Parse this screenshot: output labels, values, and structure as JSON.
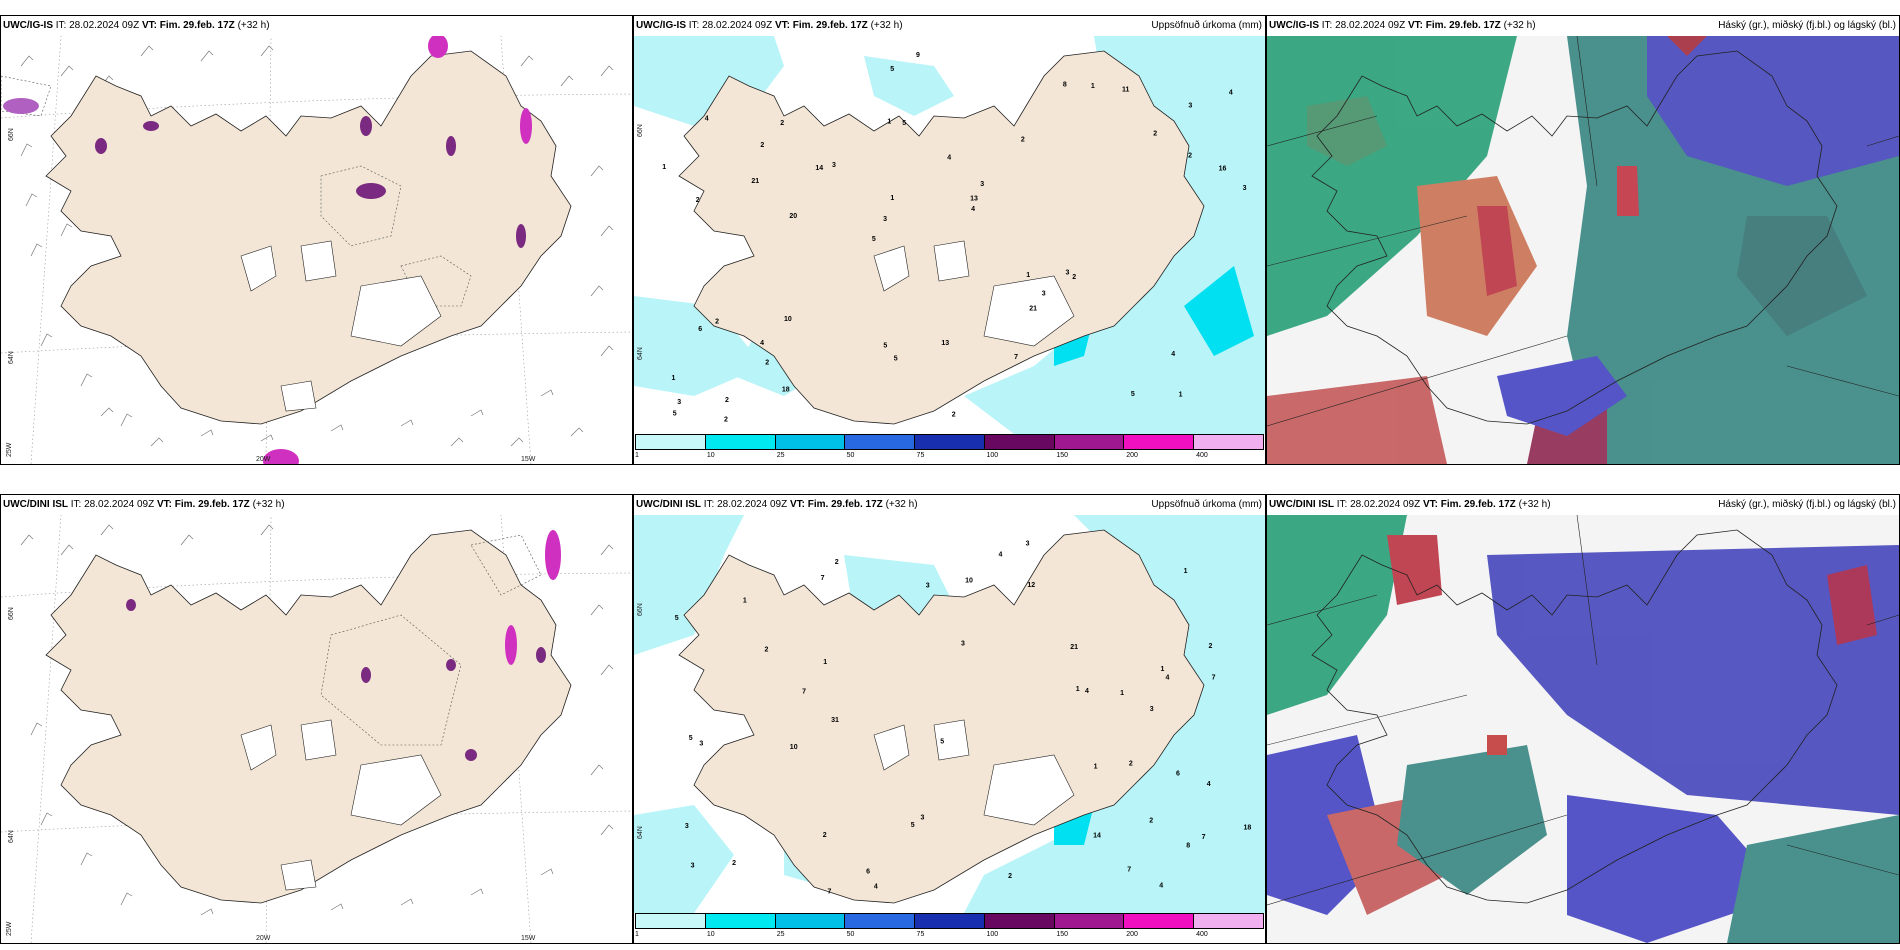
{
  "headers": {
    "top_left": {
      "model": "UWC/IG-IS",
      "init": "IT: 28.02.2024 09Z",
      "valid_prefix": "VT:",
      "valid": "Fim. 29.feb. 17Z",
      "lead": "(+32 h)"
    },
    "top_mid": {
      "model": "UWC/IG-IS",
      "init": "IT: 28.02.2024 09Z",
      "valid_prefix": "VT:",
      "valid": "Fim. 29.feb. 17Z",
      "lead": "(+32 h)",
      "title": "Uppsöfnuð úrkoma (mm)"
    },
    "top_right": {
      "model": "UWC/IG-IS",
      "init": "IT: 28.02.2024 09Z",
      "valid_prefix": "VT:",
      "valid": "Fim. 29.feb. 17Z",
      "lead": "(+32 h)",
      "title": "Háský (gr.), miðský (fj.bl.) og lágský (bl.)"
    },
    "bot_left": {
      "model": "UWC/DINI ISL",
      "init": "IT: 28.02.2024 09Z",
      "valid_prefix": "VT:",
      "valid": "Fim. 29.feb. 17Z",
      "lead": "(+32 h)"
    },
    "bot_mid": {
      "model": "UWC/DINI ISL",
      "init": "IT: 28.02.2024 09Z",
      "valid_prefix": "VT:",
      "valid": "Fim. 29.feb. 17Z",
      "lead": "(+32 h)",
      "title": "Uppsöfnuð úrkoma (mm)"
    },
    "bot_right": {
      "model": "UWC/DINI ISL",
      "init": "IT: 28.02.2024 09Z",
      "valid_prefix": "VT:",
      "valid": "Fim. 29.feb. 17Z",
      "lead": "(+32 h)",
      "title": "Háský (gr.), miðský (fj.bl.) og lágský (bl.)"
    }
  },
  "grid_labels": {
    "lat_66": "66N",
    "lat_64": "64N",
    "lon_25": "25W",
    "lon_20": "20W",
    "lon_15": "15W"
  },
  "legend": {
    "ticks": [
      "1",
      "10",
      "25",
      "50",
      "75",
      "100",
      "150",
      "200",
      "400"
    ],
    "colors": [
      "#c8f8f8",
      "#00e8f0",
      "#00c0e8",
      "#2868e0",
      "#1830b0",
      "#680860",
      "#a01890",
      "#f010c0",
      "#f0b0f0"
    ]
  },
  "precip_top": [
    "1",
    "2",
    "3",
    "5",
    "2",
    "2",
    "1",
    "4",
    "2",
    "3",
    "1",
    "2",
    "5",
    "3",
    "2",
    "4",
    "5",
    "3",
    "1",
    "2",
    "3",
    "5",
    "1",
    "2",
    "8",
    "10",
    "5",
    "4",
    "3",
    "2",
    "14",
    "21",
    "21",
    "18",
    "16",
    "13",
    "3",
    "5",
    "4",
    "6",
    "2",
    "4",
    "3",
    "7",
    "4",
    "2",
    "5",
    "13",
    "11",
    "9",
    "20",
    "1",
    "2",
    "1"
  ],
  "precip_bot": [
    "2",
    "2",
    "7",
    "3",
    "3",
    "2",
    "1",
    "2",
    "1",
    "2",
    "7",
    "5",
    "3",
    "4",
    "3",
    "1",
    "8",
    "7",
    "3",
    "4",
    "5",
    "3",
    "2",
    "1",
    "6",
    "5",
    "4",
    "12",
    "21",
    "18",
    "10",
    "14",
    "7",
    "5",
    "6",
    "7",
    "4",
    "3",
    "4",
    "31",
    "2",
    "1",
    "10",
    "7",
    "4",
    "1",
    "2",
    "3",
    "1"
  ],
  "colors": {
    "land": "#f3e6d6",
    "sea_precip": "#b8f4f8",
    "precip_mid": "#00e0f0",
    "snow_purple": "#7a2a80",
    "magenta": "#d030c0",
    "cloud_green": "#20b080",
    "cloud_blue": "#3a3ac0",
    "cloud_red": "#c02838"
  }
}
